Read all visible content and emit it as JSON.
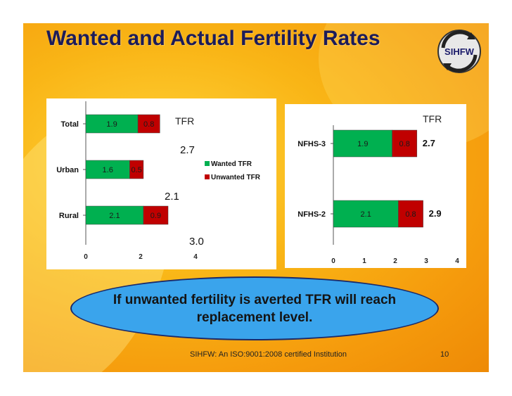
{
  "slide": {
    "title": "Wanted and Actual Fertility Rates",
    "logo_text": "SIHFW",
    "callout": "If unwanted fertility is averted TFR will reach replacement level.",
    "footer": "SIHFW: An ISO:9001:2008 certified Institution",
    "page_number": "10"
  },
  "colors": {
    "wanted": "#00b050",
    "unwanted": "#c00000",
    "title": "#1c1c5a",
    "bubble": "#3aa4ec"
  },
  "chart_data": [
    {
      "type": "bar",
      "orientation": "horizontal",
      "stacked": true,
      "categories": [
        "Total",
        "Urban",
        "Rural"
      ],
      "series": [
        {
          "name": "Wanted TFR",
          "values": [
            1.9,
            1.6,
            2.1
          ]
        },
        {
          "name": "Unwanted TFR",
          "values": [
            0.8,
            0.5,
            0.9
          ]
        }
      ],
      "totals": [
        "2.7",
        "2.1",
        "3.0"
      ],
      "totals_header": "TFR",
      "xlim": [
        0,
        4
      ],
      "xticks": [
        "0",
        "2",
        "4"
      ],
      "legend": "right"
    },
    {
      "type": "bar",
      "orientation": "horizontal",
      "stacked": true,
      "categories": [
        "NFHS-3",
        "NFHS-2"
      ],
      "series": [
        {
          "values": [
            1.9,
            2.1
          ]
        },
        {
          "values": [
            0.8,
            0.8
          ]
        }
      ],
      "totals": [
        "2.7",
        "2.9"
      ],
      "totals_header": "TFR",
      "xlim": [
        0,
        4
      ],
      "xticks": [
        "0",
        "1",
        "2",
        "3",
        "4"
      ]
    }
  ]
}
